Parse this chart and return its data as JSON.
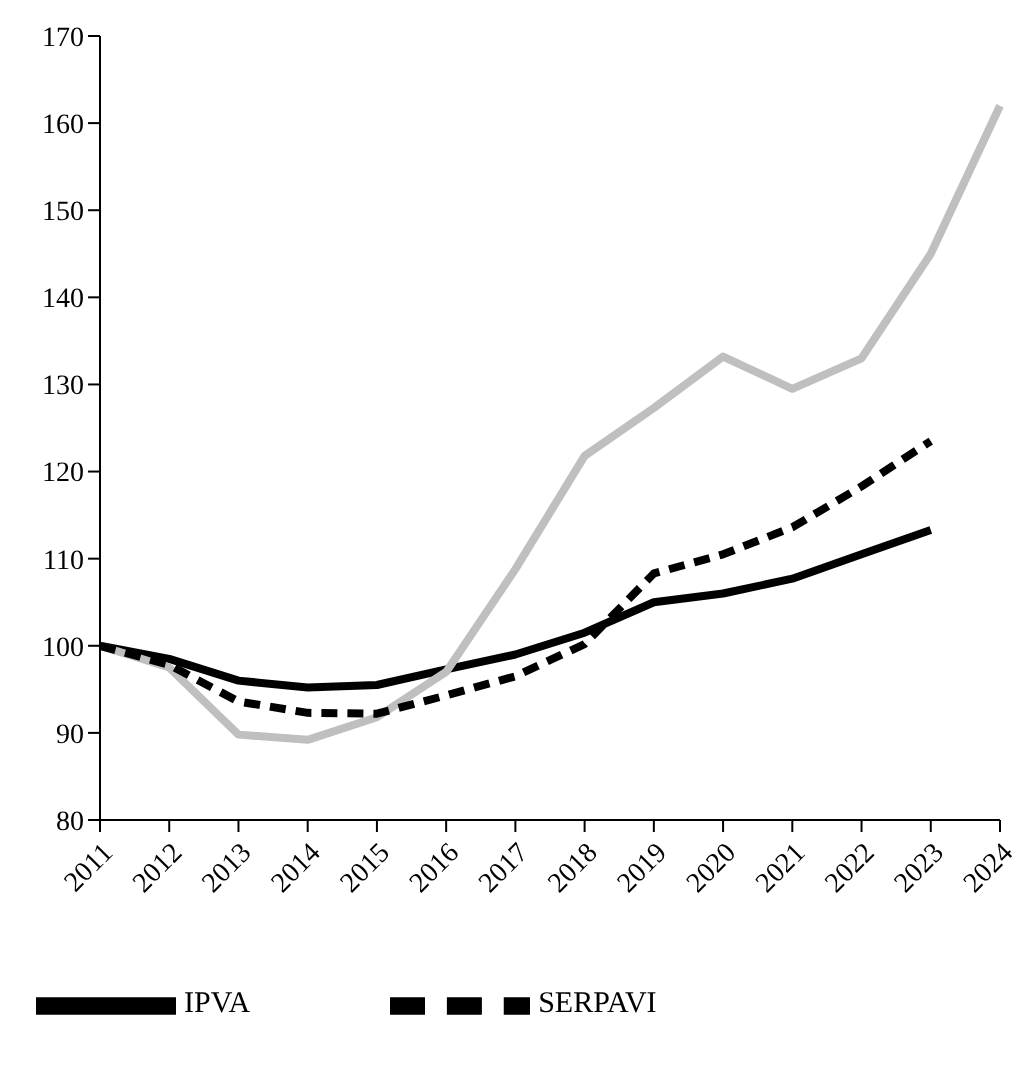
{
  "chart_data": {
    "type": "line",
    "categories": [
      "2011",
      "2012",
      "2013",
      "2014",
      "2015",
      "2016",
      "2017",
      "2018",
      "2019",
      "2020",
      "2021",
      "2022",
      "2023",
      "2024"
    ],
    "series": [
      {
        "name": "IPVA",
        "color": "#000000",
        "line_style": "solid",
        "values": [
          100,
          98.5,
          96,
          95.2,
          95.5,
          97.3,
          99,
          101.5,
          105,
          106,
          107.7,
          110.5,
          113.3,
          null
        ]
      },
      {
        "color": "#bfbfbf",
        "line_style": "solid",
        "values": [
          100,
          97.5,
          89.8,
          89.2,
          91.8,
          97,
          108.8,
          121.8,
          127.3,
          133.2,
          129.5,
          133,
          145,
          162
        ]
      },
      {
        "name": "SERPAVI",
        "color": "#000000",
        "line_style": "dashed",
        "values": [
          100,
          97.8,
          93.6,
          92.3,
          92.2,
          94.3,
          96.5,
          100.2,
          108.3,
          110.5,
          113.6,
          118.3,
          123.5,
          null
        ]
      }
    ],
    "ylim": [
      80,
      170
    ],
    "yticks": [
      80,
      90,
      100,
      110,
      120,
      130,
      140,
      150,
      160,
      170
    ],
    "grid": false,
    "legend": "bottom",
    "marker": "none"
  }
}
